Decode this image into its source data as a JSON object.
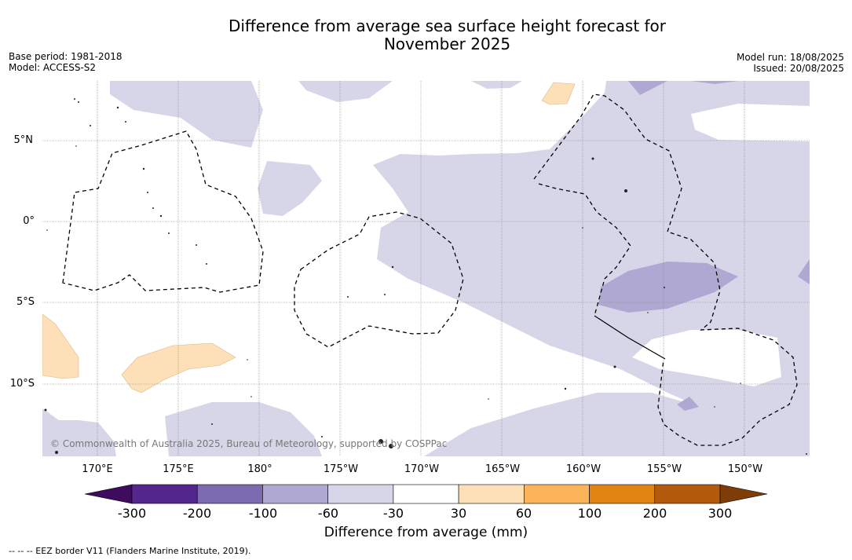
{
  "title_line1": "Difference from average sea surface height forecast for",
  "title_line2": "November 2025",
  "meta_left": {
    "base_period": "Base period: 1981-2018",
    "model": "Model: ACCESS-S2"
  },
  "meta_right": {
    "model_run": "Model run: 18/08/2025",
    "issued": "Issued: 20/08/2025"
  },
  "map": {
    "lat_labels": [
      "5°N",
      "0°",
      "5°S",
      "10°S"
    ],
    "lon_labels": [
      "170°E",
      "175°E",
      "180°",
      "175°W",
      "170°W",
      "165°W",
      "160°W",
      "155°W",
      "150°W"
    ],
    "copyright": "© Commonwealth of Australia 2025, Bureau of Meteorology, supported by COSPPac",
    "colors": {
      "light_purple": "#d6d6e8",
      "mid_purple": "#afa8d2",
      "light_orange": "#fde0b8",
      "land": "#333333"
    }
  },
  "colorbar": {
    "ticks": [
      "-300",
      "-200",
      "-100",
      "-60",
      "-30",
      "30",
      "60",
      "100",
      "200",
      "300"
    ],
    "colors": [
      "#3f0b5c",
      "#54278f",
      "#7d6baf",
      "#afa8d2",
      "#d6d6e8",
      "#ffffff",
      "#fde0b8",
      "#fbb45a",
      "#e08514",
      "#b45a0c",
      "#7e3c06"
    ],
    "label": "Difference from average (mm)"
  },
  "footer": "--  --  -- EEZ border V11 (Flanders Marine Institute, 2019)."
}
